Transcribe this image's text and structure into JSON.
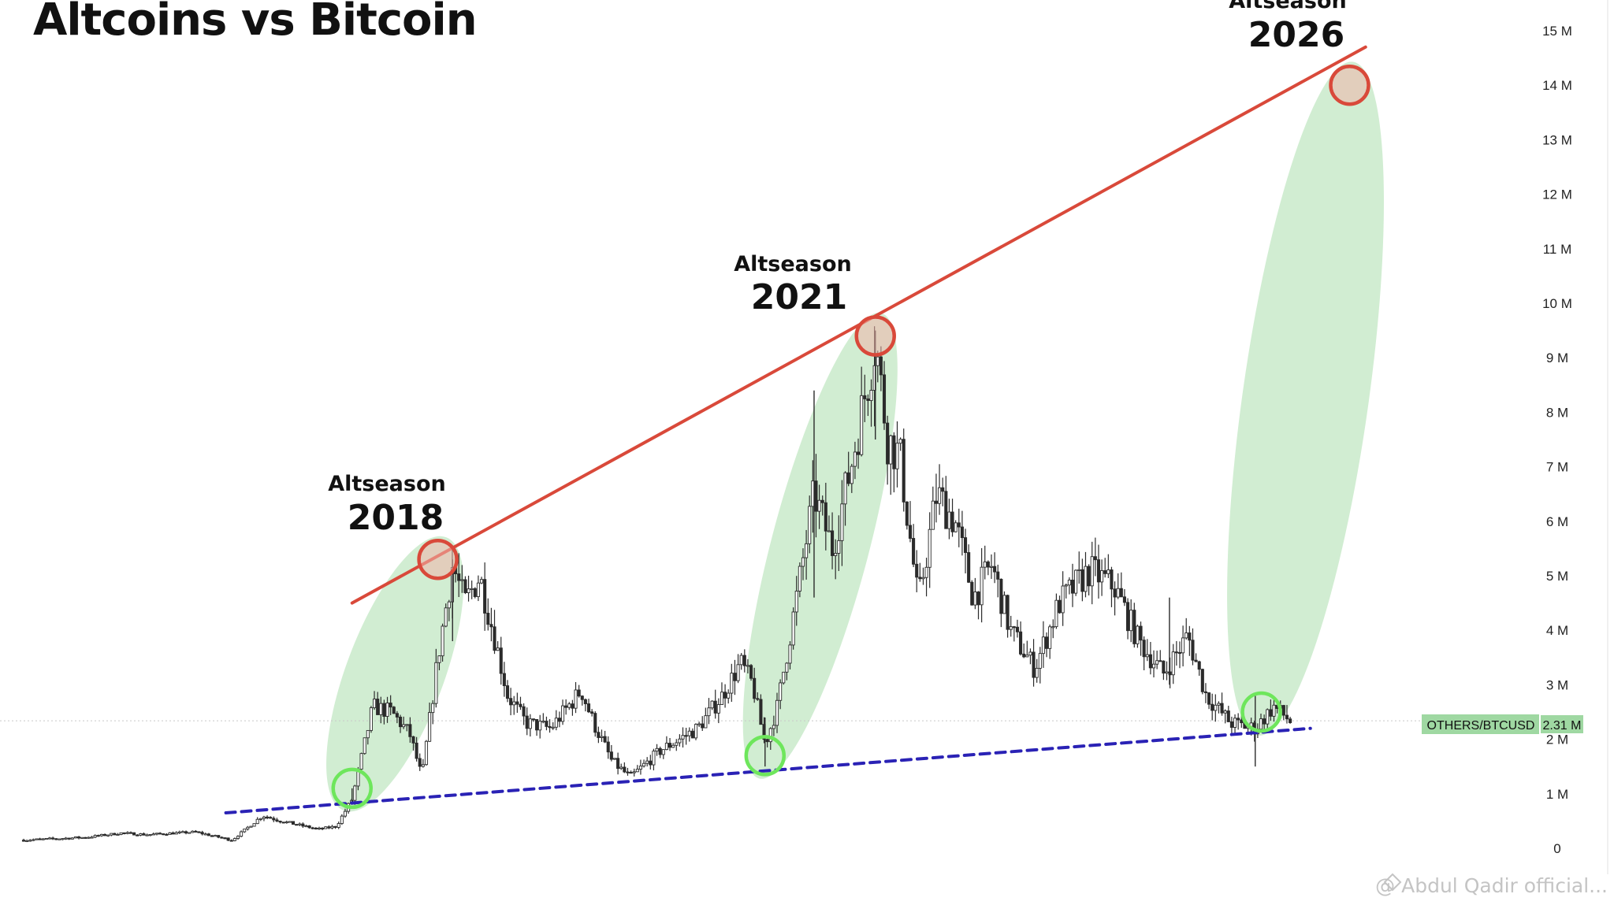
{
  "title": "Altcoins vs Bitcoin",
  "symbol_badge": {
    "symbol": "OTHERS/BTCUSD",
    "value": "2.31 M",
    "color": "#9fd8a2"
  },
  "watermark": "@ Abdul Qadir official...",
  "colors": {
    "candle": "#2b2b2b",
    "resistance_line": "#d9493a",
    "support_line": "#2a22b5",
    "ellipse_fill": "#bfe6c0",
    "peak_circle": "#d9493a",
    "bottom_circle": "#6ee65c"
  },
  "chart_data": {
    "type": "line",
    "title": "Altcoins vs Bitcoin",
    "series": [
      {
        "name": "OTHERS/BTCUSD",
        "style": "candlestick"
      }
    ],
    "y_axis": {
      "side": "right",
      "ticks": [
        "15 M",
        "14 M",
        "13 M",
        "12 M",
        "11 M",
        "10 M",
        "9 M",
        "8 M",
        "7 M",
        "6 M",
        "5 M",
        "4 M",
        "3 M",
        "2 M",
        "1 M",
        "0"
      ],
      "tick_values": [
        15,
        14,
        13,
        12,
        11,
        10,
        9,
        8,
        7,
        6,
        5,
        4,
        3,
        2,
        1,
        0
      ],
      "unit": "M",
      "ylim": [
        0,
        15
      ]
    },
    "x_axis": {
      "range_year": [
        2016.0,
        2027.0
      ],
      "tick_labels_visible": false
    },
    "last_value": 2.31,
    "price_path": [
      [
        2016.0,
        0.15
      ],
      [
        2016.5,
        0.2
      ],
      [
        2016.8,
        0.28
      ],
      [
        2017.0,
        0.25
      ],
      [
        2017.4,
        0.3
      ],
      [
        2017.7,
        0.15
      ],
      [
        2017.95,
        0.6
      ],
      [
        2018.1,
        0.5
      ],
      [
        2018.4,
        0.35
      ],
      [
        2018.55,
        0.4
      ],
      [
        2018.68,
        0.9
      ],
      [
        2018.85,
        2.6
      ],
      [
        2019.0,
        2.5
      ],
      [
        2019.15,
        2.1
      ],
      [
        2019.25,
        1.3
      ],
      [
        2019.38,
        3.5
      ],
      [
        2019.5,
        5.2
      ],
      [
        2019.6,
        4.5
      ],
      [
        2019.72,
        5.0
      ],
      [
        2019.85,
        3.8
      ],
      [
        2019.95,
        2.8
      ],
      [
        2020.1,
        2.3
      ],
      [
        2020.3,
        2.2
      ],
      [
        2020.55,
        2.9
      ],
      [
        2020.65,
        2.3
      ],
      [
        2020.8,
        1.6
      ],
      [
        2020.95,
        1.3
      ],
      [
        2021.2,
        1.8
      ],
      [
        2021.5,
        2.2
      ],
      [
        2021.7,
        2.8
      ],
      [
        2021.85,
        3.4
      ],
      [
        2021.95,
        3.0
      ],
      [
        2022.05,
        1.9
      ],
      [
        2022.15,
        2.6
      ],
      [
        2022.3,
        4.5
      ],
      [
        2022.45,
        6.5
      ],
      [
        2022.6,
        5.5
      ],
      [
        2022.75,
        7.0
      ],
      [
        2022.95,
        9.3
      ],
      [
        2023.05,
        7.5
      ],
      [
        2023.15,
        7.2
      ],
      [
        2023.3,
        4.5
      ],
      [
        2023.45,
        6.5
      ],
      [
        2023.6,
        6.0
      ],
      [
        2023.75,
        4.6
      ],
      [
        2023.9,
        5.2
      ],
      [
        2024.05,
        4.0
      ],
      [
        2024.25,
        3.3
      ],
      [
        2024.45,
        4.5
      ],
      [
        2024.7,
        5.1
      ],
      [
        2024.9,
        4.8
      ],
      [
        2025.1,
        3.8
      ],
      [
        2025.3,
        3.2
      ],
      [
        2025.5,
        3.9
      ],
      [
        2025.65,
        2.8
      ],
      [
        2025.85,
        2.3
      ],
      [
        2026.05,
        2.2
      ],
      [
        2026.2,
        2.6
      ],
      [
        2026.35,
        2.31
      ]
    ],
    "spikes": [
      [
        2018.68,
        0.8,
        1.1
      ],
      [
        2019.5,
        3.8,
        5.3
      ],
      [
        2022.05,
        1.5,
        2.4
      ],
      [
        2022.45,
        4.6,
        8.4
      ],
      [
        2022.95,
        7.5,
        9.5
      ],
      [
        2025.35,
        3.0,
        4.6
      ],
      [
        2026.05,
        1.5,
        2.8
      ]
    ],
    "trendlines": [
      {
        "name": "resistance",
        "from": [
          2018.68,
          4.5
        ],
        "to": [
          2026.95,
          14.7
        ],
        "style": "solid"
      },
      {
        "name": "support",
        "from": [
          2017.65,
          0.65
        ],
        "to": [
          2026.5,
          2.2
        ],
        "style": "dashed"
      }
    ],
    "highlights": [
      {
        "label": "Altseason",
        "year_label": "2018",
        "peak": [
          2019.38,
          5.3
        ],
        "bottom": [
          2018.68,
          1.1
        ]
      },
      {
        "label": "Altseason",
        "year_label": "2021",
        "peak": [
          2022.95,
          9.4
        ],
        "bottom": [
          2022.05,
          1.7
        ]
      },
      {
        "label": "Altseason",
        "year_label": "2026",
        "peak": [
          2026.82,
          14.0
        ],
        "bottom": [
          2026.1,
          2.5
        ]
      }
    ]
  }
}
